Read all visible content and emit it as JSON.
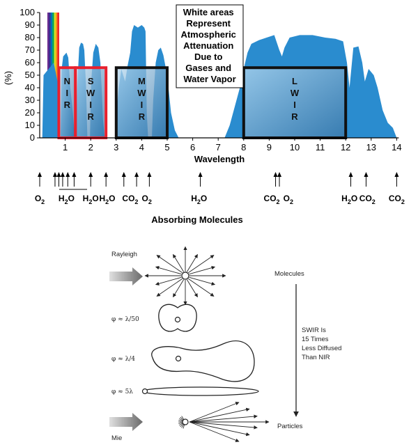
{
  "chart_data": {
    "type": "area",
    "title": "",
    "xlabel": "Wavelength",
    "ylabel": "(%)",
    "xlim": [
      0,
      14
    ],
    "ylim": [
      0,
      100
    ],
    "x_ticks": [
      "1",
      "2",
      "3",
      "4",
      "5",
      "6",
      "7",
      "8",
      "9",
      "10",
      "11",
      "12",
      "13",
      "14"
    ],
    "y_ticks": [
      "0",
      "10",
      "20",
      "30",
      "40",
      "50",
      "60",
      "70",
      "80",
      "90",
      "100"
    ],
    "grid": false,
    "series": [
      {
        "color": "#2a8ccf",
        "points": [
          [
            0.1,
            0
          ],
          [
            0.15,
            50
          ],
          [
            0.35,
            55
          ],
          [
            0.55,
            60
          ],
          [
            0.7,
            45
          ],
          [
            0.78,
            0
          ],
          [
            0.82,
            0
          ],
          [
            0.86,
            55
          ],
          [
            0.92,
            65
          ],
          [
            1.05,
            68
          ],
          [
            1.12,
            64
          ],
          [
            1.2,
            40
          ],
          [
            1.3,
            20
          ],
          [
            1.38,
            0
          ],
          [
            1.42,
            0
          ],
          [
            1.47,
            40
          ],
          [
            1.55,
            72
          ],
          [
            1.62,
            76
          ],
          [
            1.7,
            75
          ],
          [
            1.75,
            70
          ],
          [
            1.82,
            40
          ],
          [
            1.87,
            0
          ],
          [
            1.97,
            0
          ],
          [
            2.02,
            45
          ],
          [
            2.1,
            68
          ],
          [
            2.2,
            75
          ],
          [
            2.3,
            72
          ],
          [
            2.38,
            60
          ],
          [
            2.43,
            40
          ],
          [
            2.48,
            15
          ],
          [
            2.55,
            0
          ],
          [
            2.95,
            0
          ],
          [
            3.0,
            20
          ],
          [
            3.1,
            40
          ],
          [
            3.2,
            55
          ],
          [
            3.35,
            45
          ],
          [
            3.45,
            58
          ],
          [
            3.55,
            68
          ],
          [
            3.62,
            85
          ],
          [
            3.7,
            90
          ],
          [
            3.85,
            88
          ],
          [
            4.0,
            90
          ],
          [
            4.1,
            88
          ],
          [
            4.15,
            85
          ],
          [
            4.2,
            20
          ],
          [
            4.25,
            0
          ],
          [
            4.4,
            0
          ],
          [
            4.45,
            30
          ],
          [
            4.55,
            60
          ],
          [
            4.65,
            70
          ],
          [
            4.75,
            72
          ],
          [
            4.85,
            66
          ],
          [
            4.95,
            55
          ],
          [
            5.05,
            40
          ],
          [
            5.15,
            20
          ],
          [
            5.3,
            6
          ],
          [
            5.45,
            0
          ],
          [
            7.25,
            0
          ],
          [
            7.45,
            10
          ],
          [
            7.65,
            25
          ],
          [
            7.85,
            40
          ],
          [
            8.0,
            55
          ],
          [
            8.15,
            68
          ],
          [
            8.3,
            75
          ],
          [
            8.6,
            78
          ],
          [
            8.9,
            80
          ],
          [
            9.2,
            82
          ],
          [
            9.4,
            70
          ],
          [
            9.5,
            65
          ],
          [
            9.6,
            72
          ],
          [
            9.8,
            80
          ],
          [
            10.2,
            82
          ],
          [
            10.7,
            82
          ],
          [
            11.2,
            80
          ],
          [
            11.6,
            79
          ],
          [
            11.9,
            77
          ],
          [
            12.05,
            60
          ],
          [
            12.15,
            40
          ],
          [
            12.3,
            72
          ],
          [
            12.5,
            73
          ],
          [
            12.65,
            60
          ],
          [
            12.75,
            45
          ],
          [
            12.9,
            55
          ],
          [
            13.1,
            50
          ],
          [
            13.25,
            40
          ],
          [
            13.45,
            22
          ],
          [
            13.65,
            12
          ],
          [
            13.85,
            8
          ],
          [
            14.0,
            0
          ]
        ]
      }
    ],
    "boxes": [
      {
        "label": [
          "N",
          "I",
          "R"
        ],
        "x0": 0.75,
        "x1": 1.4,
        "y0": 0,
        "y1": 56,
        "color": "#e8202e"
      },
      {
        "label": [
          "S",
          "W",
          "I",
          "R"
        ],
        "x0": 1.4,
        "x1": 2.6,
        "y0": 0,
        "y1": 56,
        "color": "#e8202e"
      },
      {
        "label": [
          "M",
          "W",
          "I",
          "R"
        ],
        "x0": 3.0,
        "x1": 5.0,
        "y0": 0,
        "y1": 56,
        "color": "#111111"
      },
      {
        "label": [
          "L",
          "W",
          "I",
          "R"
        ],
        "x0": 8.0,
        "x1": 12.0,
        "y0": 0,
        "y1": 56,
        "color": "#111111"
      }
    ],
    "annotation": [
      "White areas",
      "Represent",
      "Atmospheric",
      "Attenuation",
      "Due to",
      "Gases and",
      "Water Vapor"
    ],
    "absorbing_molecules": {
      "title": "Absorbing Molecules",
      "arrows_x": [
        0.0,
        0.6,
        0.75,
        0.9,
        1.1,
        1.35,
        2.0,
        2.6,
        3.3,
        3.8,
        4.3,
        6.3,
        9.25,
        9.4,
        12.2,
        12.8,
        14.0
      ],
      "labels": [
        {
          "x": 0.0,
          "text": "O",
          "sub": "2"
        },
        {
          "x": 1.05,
          "text": "H",
          "sub": "2",
          "tail": "O"
        },
        {
          "x": 2.0,
          "text": "H",
          "sub": "2",
          "tail": "O"
        },
        {
          "x": 2.65,
          "text": "H",
          "sub": "2",
          "tail": "O"
        },
        {
          "x": 3.55,
          "text": "CO",
          "sub": "2"
        },
        {
          "x": 4.2,
          "text": "O",
          "sub": "2"
        },
        {
          "x": 6.25,
          "text": "H",
          "sub": "2",
          "tail": "O"
        },
        {
          "x": 9.1,
          "text": "CO",
          "sub": "2"
        },
        {
          "x": 9.75,
          "text": "O",
          "sub": "2"
        },
        {
          "x": 12.15,
          "text": "H",
          "sub": "2",
          "tail": "O"
        },
        {
          "x": 12.85,
          "text": "CO",
          "sub": "2"
        },
        {
          "x": 14.0,
          "text": "CO",
          "sub": "2"
        }
      ]
    }
  },
  "scattering": {
    "rayleigh_label": "Rayleigh",
    "mie_label": "Mie",
    "molecules_label": "Molecules",
    "particles_label": "Particles",
    "phi_1": "φ ≈ λ/50",
    "phi_2": "φ ≈ λ/4",
    "phi_3": "φ ≈ 5λ",
    "swir_note": [
      "SWIR Is",
      "15 Times",
      "Less Diffused",
      "Than NIR"
    ]
  }
}
